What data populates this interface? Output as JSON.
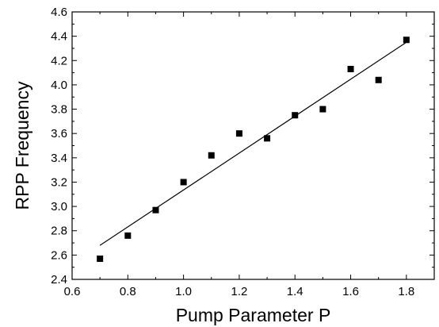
{
  "chart_data": {
    "type": "scatter",
    "title": "",
    "xlabel": "Pump Parameter P",
    "ylabel": "RPP Frequency",
    "xlim": [
      0.6,
      1.9
    ],
    "ylim": [
      2.4,
      4.6
    ],
    "xticks": [
      0.6,
      0.8,
      1.0,
      1.2,
      1.4,
      1.6,
      1.8
    ],
    "xtick_labels": [
      "0.6",
      "0.8",
      "1.0",
      "1.2",
      "1.4",
      "1.6",
      "1.8"
    ],
    "yticks": [
      2.4,
      2.6,
      2.8,
      3.0,
      3.2,
      3.4,
      3.6,
      3.8,
      4.0,
      4.2,
      4.4,
      4.6
    ],
    "ytick_labels": [
      "2.4",
      "2.6",
      "2.8",
      "3.0",
      "3.2",
      "3.4",
      "3.6",
      "3.8",
      "4.0",
      "4.2",
      "4.4",
      "4.6"
    ],
    "grid": false,
    "legend": "none",
    "series": [
      {
        "type": "scatter",
        "marker": "square",
        "color": "#000000",
        "x": [
          0.7,
          0.8,
          0.9,
          1.0,
          1.1,
          1.2,
          1.3,
          1.4,
          1.5,
          1.6,
          1.7,
          1.8
        ],
        "y": [
          2.57,
          2.76,
          2.97,
          3.2,
          3.42,
          3.6,
          3.56,
          3.75,
          3.8,
          4.13,
          4.04,
          4.37
        ]
      },
      {
        "type": "line",
        "style": "linear fit",
        "color": "#000000",
        "x": [
          0.7,
          1.8
        ],
        "y": [
          2.68,
          4.35
        ]
      }
    ]
  }
}
